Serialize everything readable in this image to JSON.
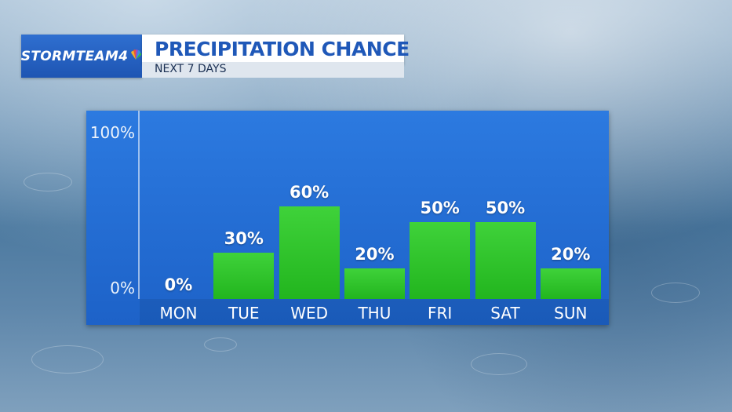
{
  "header": {
    "logo": "STORMTEAM4",
    "title": "PRECIPITATION CHANCE",
    "subtitle": "NEXT 7 DAYS"
  },
  "colors": {
    "bar": "#2fc52b",
    "panel": "#2470d6",
    "title_text": "#1f58b8",
    "logo_bg": "#2a65c6"
  },
  "chart_data": {
    "type": "bar",
    "title": "PRECIPITATION CHANCE",
    "subtitle": "NEXT 7 DAYS",
    "categories": [
      "MON",
      "TUE",
      "WED",
      "THU",
      "FRI",
      "SAT",
      "SUN"
    ],
    "values": [
      0,
      30,
      60,
      20,
      50,
      50,
      20
    ],
    "value_labels": [
      "0%",
      "30%",
      "60%",
      "20%",
      "50%",
      "50%",
      "20%"
    ],
    "y_ticks": [
      "100%",
      "0%"
    ],
    "ylim": [
      0,
      100
    ],
    "unit": "%",
    "grid": false
  }
}
